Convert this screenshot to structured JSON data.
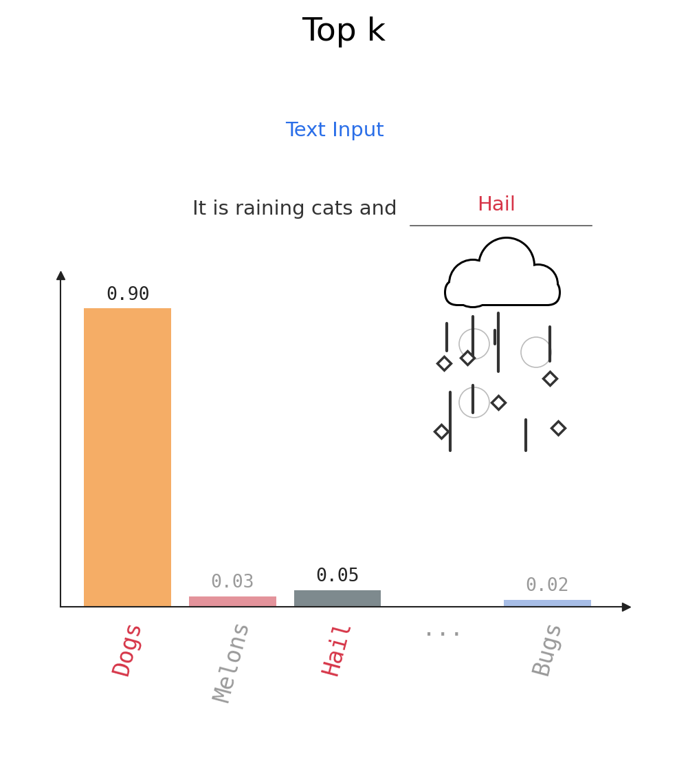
{
  "chart_data": {
    "type": "bar",
    "title": "Top k",
    "subtitle": "Text Input",
    "annotations": [
      "It is raining cats and",
      "Hail"
    ],
    "categories": [
      "Dogs",
      "Melons",
      "Hail",
      "...",
      "Bugs"
    ],
    "values": [
      0.9,
      0.03,
      0.05,
      null,
      0.02
    ],
    "value_labels": [
      "0.90",
      "0.03",
      "0.05",
      null,
      "0.02"
    ],
    "colors": [
      "#f5ad66",
      "#e3939b",
      "#7e8a8e",
      null,
      "#a7bde6"
    ],
    "ylim": [
      0,
      1.0
    ],
    "grid": false,
    "data_labels": true,
    "tick_labels": "x"
  }
}
